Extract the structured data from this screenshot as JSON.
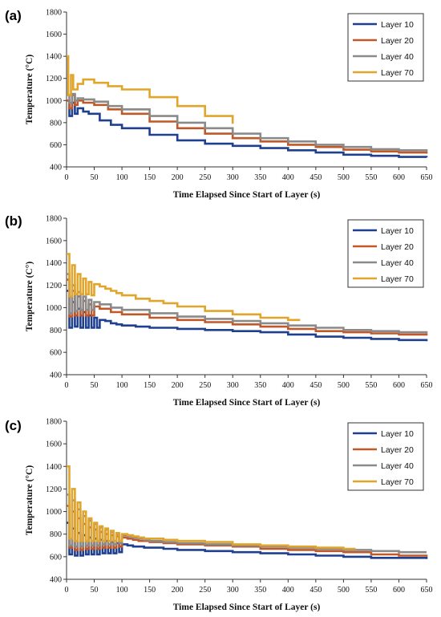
{
  "colors": {
    "Layer 10": "#1f3f8f",
    "Layer 20": "#c0582a",
    "Layer 40": "#8a8a8a",
    "Layer 70": "#e0a52a"
  },
  "chart_data": [
    {
      "panel_label": "(a)",
      "type": "line",
      "xlabel": "Time Elapsed Since Start of Layer (s)",
      "ylabel": "Temperature (°C)",
      "xlim": [
        0,
        650
      ],
      "ylim": [
        400,
        1800
      ],
      "xticks": [
        0,
        50,
        100,
        150,
        200,
        250,
        300,
        350,
        400,
        450,
        500,
        550,
        600,
        650
      ],
      "yticks": [
        400,
        600,
        800,
        1000,
        1200,
        1400,
        1600,
        1800
      ],
      "legend_position": "top-right",
      "series": [
        {
          "name": "Layer 10",
          "x": [
            0,
            5,
            10,
            15,
            20,
            30,
            40,
            60,
            80,
            100,
            150,
            200,
            250,
            300,
            350,
            400,
            450,
            500,
            550,
            600,
            650
          ],
          "y": [
            1000,
            860,
            980,
            880,
            930,
            900,
            880,
            820,
            780,
            750,
            690,
            640,
            610,
            590,
            570,
            550,
            530,
            510,
            500,
            490,
            485
          ]
        },
        {
          "name": "Layer 20",
          "x": [
            0,
            5,
            10,
            15,
            20,
            30,
            50,
            75,
            100,
            150,
            200,
            250,
            300,
            350,
            400,
            450,
            500,
            550,
            600,
            650
          ],
          "y": [
            1000,
            930,
            1050,
            960,
            1000,
            980,
            960,
            920,
            880,
            810,
            750,
            700,
            660,
            630,
            600,
            580,
            555,
            540,
            530,
            520
          ]
        },
        {
          "name": "Layer 40",
          "x": [
            0,
            5,
            10,
            15,
            20,
            30,
            50,
            75,
            100,
            150,
            200,
            250,
            300,
            350,
            400,
            450,
            500,
            550,
            600,
            650
          ],
          "y": [
            1050,
            980,
            1060,
            1000,
            1020,
            1010,
            990,
            950,
            920,
            860,
            800,
            750,
            700,
            660,
            630,
            600,
            580,
            560,
            550,
            540
          ]
        },
        {
          "name": "Layer 70",
          "x": [
            0,
            3,
            8,
            12,
            20,
            30,
            50,
            75,
            100,
            150,
            200,
            250,
            300
          ],
          "y": [
            1400,
            1050,
            1230,
            1100,
            1150,
            1190,
            1160,
            1130,
            1100,
            1030,
            950,
            860,
            790
          ]
        }
      ]
    },
    {
      "panel_label": "(b)",
      "type": "line",
      "xlabel": "Time Elapsed Since Start of Layer (s)",
      "ylabel": "Temperature (C°)",
      "xlim": [
        0,
        650
      ],
      "ylim": [
        400,
        1800
      ],
      "xticks": [
        0,
        50,
        100,
        150,
        200,
        250,
        300,
        350,
        400,
        450,
        500,
        550,
        600,
        650
      ],
      "yticks": [
        400,
        600,
        800,
        1000,
        1200,
        1400,
        1600,
        1800
      ],
      "legend_position": "top-right",
      "series": [
        {
          "name": "Layer 10",
          "x": [
            0,
            5,
            10,
            15,
            20,
            25,
            30,
            35,
            40,
            45,
            50,
            55,
            60,
            70,
            80,
            90,
            100,
            125,
            150,
            200,
            250,
            300,
            350,
            400,
            450,
            500,
            550,
            600,
            650
          ],
          "y": [
            1150,
            820,
            1050,
            830,
            990,
            820,
            960,
            820,
            930,
            820,
            910,
            820,
            890,
            880,
            860,
            850,
            840,
            830,
            820,
            810,
            800,
            790,
            780,
            760,
            740,
            730,
            720,
            710,
            700
          ]
        },
        {
          "name": "Layer 20",
          "x": [
            0,
            5,
            10,
            15,
            20,
            25,
            30,
            35,
            40,
            45,
            50,
            60,
            80,
            100,
            150,
            200,
            250,
            300,
            350,
            400,
            450,
            500,
            550,
            600,
            650
          ],
          "y": [
            1250,
            920,
            1150,
            930,
            1100,
            930,
            1060,
            930,
            1030,
            930,
            1010,
            990,
            960,
            940,
            910,
            890,
            870,
            850,
            830,
            810,
            790,
            780,
            770,
            760,
            750
          ]
        },
        {
          "name": "Layer 40",
          "x": [
            0,
            5,
            10,
            15,
            20,
            25,
            30,
            35,
            40,
            45,
            50,
            60,
            80,
            100,
            150,
            200,
            250,
            300,
            350,
            400,
            450,
            500,
            550,
            600,
            650
          ],
          "y": [
            1300,
            950,
            1200,
            970,
            1140,
            980,
            1100,
            980,
            1070,
            980,
            1050,
            1030,
            1000,
            980,
            950,
            920,
            900,
            880,
            860,
            840,
            820,
            800,
            790,
            780,
            770
          ]
        },
        {
          "name": "Layer 70",
          "x": [
            0,
            5,
            10,
            15,
            20,
            25,
            30,
            35,
            40,
            45,
            50,
            60,
            70,
            80,
            90,
            100,
            125,
            150,
            175,
            200,
            250,
            300,
            350,
            400,
            420
          ],
          "y": [
            1480,
            1100,
            1380,
            1120,
            1300,
            1120,
            1260,
            1120,
            1230,
            1110,
            1210,
            1190,
            1170,
            1150,
            1130,
            1110,
            1080,
            1060,
            1040,
            1010,
            970,
            940,
            910,
            890,
            880
          ]
        }
      ]
    },
    {
      "panel_label": "(c)",
      "type": "line",
      "xlabel": "Time Elapsed Since Start of Layer (s)",
      "ylabel": "Temperature (°C)",
      "xlim": [
        0,
        650
      ],
      "ylim": [
        400,
        1800
      ],
      "xticks": [
        0,
        50,
        100,
        150,
        200,
        250,
        300,
        350,
        400,
        450,
        500,
        550,
        600,
        650
      ],
      "yticks": [
        400,
        600,
        800,
        1000,
        1200,
        1400,
        1600,
        1800
      ],
      "legend_position": "top-right",
      "series": [
        {
          "name": "Layer 10",
          "x": [
            0,
            5,
            10,
            15,
            20,
            25,
            30,
            35,
            40,
            45,
            50,
            55,
            60,
            65,
            70,
            75,
            80,
            85,
            90,
            95,
            100,
            110,
            120,
            130,
            140,
            150,
            175,
            200,
            250,
            300,
            350,
            400,
            450,
            500,
            550,
            600,
            650
          ],
          "y": [
            900,
            620,
            850,
            610,
            810,
            610,
            790,
            620,
            770,
            620,
            760,
            620,
            750,
            630,
            740,
            630,
            730,
            630,
            720,
            640,
            710,
            700,
            690,
            690,
            680,
            680,
            670,
            660,
            650,
            640,
            630,
            620,
            610,
            600,
            590,
            590,
            580
          ]
        },
        {
          "name": "Layer 20",
          "x": [
            0,
            5,
            10,
            15,
            20,
            25,
            30,
            35,
            40,
            45,
            50,
            55,
            60,
            65,
            70,
            75,
            80,
            85,
            90,
            95,
            100,
            110,
            120,
            130,
            140,
            150,
            175,
            200,
            250,
            300,
            350,
            400,
            450,
            500,
            550,
            600,
            650
          ],
          "y": [
            1050,
            680,
            1000,
            660,
            940,
            660,
            890,
            670,
            860,
            670,
            840,
            670,
            820,
            680,
            800,
            680,
            790,
            680,
            780,
            690,
            770,
            760,
            750,
            740,
            740,
            730,
            720,
            710,
            700,
            690,
            670,
            660,
            650,
            640,
            620,
            610,
            600
          ]
        },
        {
          "name": "Layer 40",
          "x": [
            0,
            5,
            10,
            15,
            20,
            25,
            30,
            35,
            40,
            45,
            50,
            55,
            60,
            65,
            70,
            75,
            80,
            85,
            90,
            95,
            100,
            110,
            120,
            130,
            140,
            150,
            175,
            200,
            250,
            300,
            350,
            400,
            450,
            500,
            550,
            600,
            650
          ],
          "y": [
            1150,
            700,
            1100,
            690,
            1020,
            690,
            960,
            700,
            920,
            700,
            890,
            700,
            860,
            710,
            840,
            710,
            820,
            710,
            800,
            720,
            790,
            780,
            770,
            760,
            750,
            740,
            730,
            720,
            710,
            700,
            690,
            680,
            670,
            660,
            650,
            640,
            640
          ]
        },
        {
          "name": "Layer 70",
          "x": [
            0,
            5,
            10,
            15,
            20,
            25,
            30,
            35,
            40,
            45,
            50,
            55,
            60,
            65,
            70,
            75,
            80,
            85,
            90,
            95,
            100,
            110,
            120,
            130,
            140,
            150,
            175,
            200,
            250,
            300,
            350,
            400,
            450,
            500,
            520
          ],
          "y": [
            1400,
            760,
            1200,
            740,
            1080,
            740,
            1000,
            740,
            940,
            740,
            900,
            740,
            870,
            740,
            850,
            740,
            830,
            740,
            810,
            740,
            800,
            790,
            780,
            770,
            760,
            760,
            750,
            740,
            730,
            710,
            700,
            690,
            680,
            670,
            660
          ]
        }
      ]
    }
  ]
}
